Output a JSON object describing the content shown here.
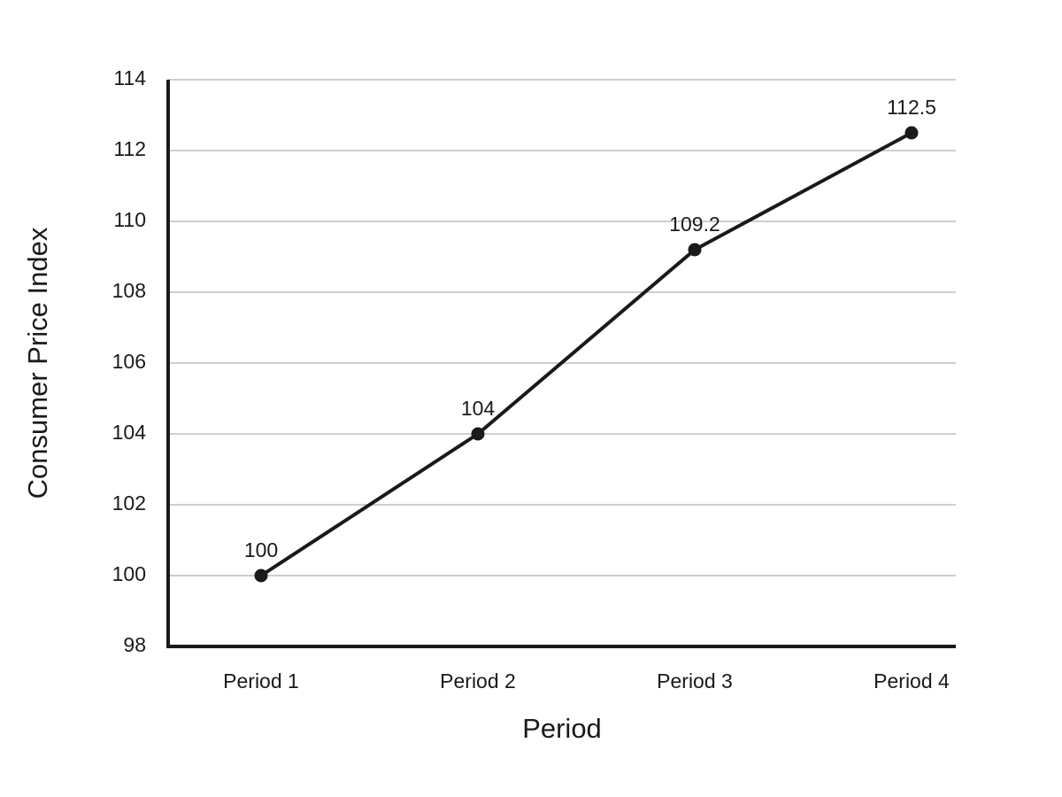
{
  "chart_data": {
    "type": "line",
    "x_label": "Period",
    "y_label": "Consumer Price Index",
    "categories": [
      "Period 1",
      "Period 2",
      "Period 3",
      "Period 4"
    ],
    "values": [
      100,
      104,
      109.2,
      112.5
    ],
    "color": "#1a1a1a",
    "ylim": [
      98,
      114
    ],
    "yticks": [
      98,
      100,
      102,
      104,
      106,
      108,
      110,
      112,
      114
    ],
    "grid": true
  }
}
